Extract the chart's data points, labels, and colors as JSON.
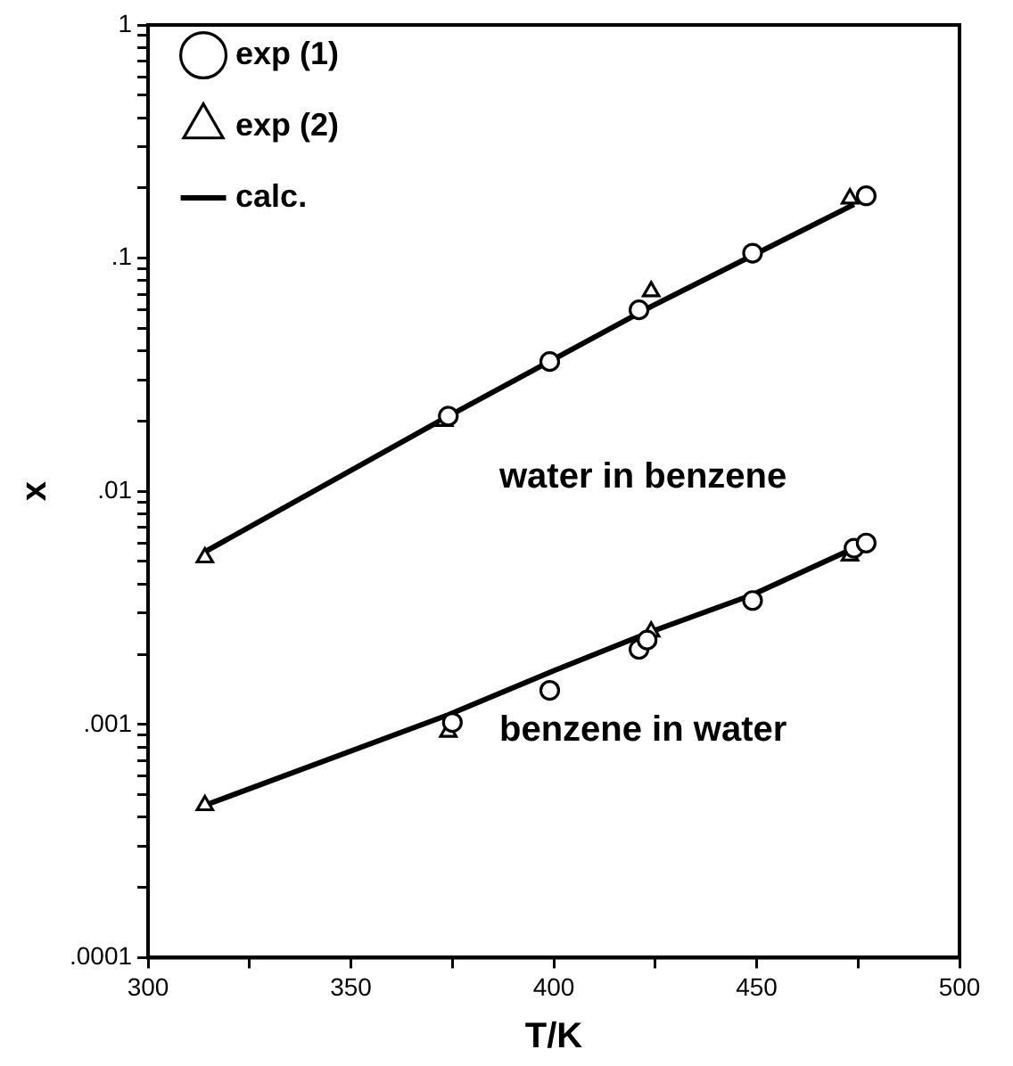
{
  "chart_data": {
    "type": "scatter",
    "xlabel": "T/K",
    "ylabel": "x",
    "xlim": [
      300,
      500
    ],
    "xticks": [
      300,
      {
        "value": 325,
        "label": null
      },
      350,
      {
        "value": 375,
        "label": null
      },
      400,
      {
        "value": 425,
        "label": null
      },
      450,
      {
        "value": 475,
        "label": null
      },
      500
    ],
    "ylim": [
      0.0001,
      1
    ],
    "log": "y",
    "yticks": [
      {
        "value": 0.0001,
        "label": ".0001"
      },
      {
        "value": 0.0002,
        "label": null
      },
      {
        "value": 0.0003,
        "label": null
      },
      {
        "value": 0.0004,
        "label": null
      },
      {
        "value": 0.0005,
        "label": null
      },
      {
        "value": 0.0006,
        "label": null
      },
      {
        "value": 0.0007,
        "label": null
      },
      {
        "value": 0.0008,
        "label": null
      },
      {
        "value": 0.0009,
        "label": null
      },
      {
        "value": 0.001,
        "label": ".001"
      },
      {
        "value": 0.002,
        "label": null
      },
      {
        "value": 0.003,
        "label": null
      },
      {
        "value": 0.004,
        "label": null
      },
      {
        "value": 0.005,
        "label": null
      },
      {
        "value": 0.006,
        "label": null
      },
      {
        "value": 0.007,
        "label": null
      },
      {
        "value": 0.008,
        "label": null
      },
      {
        "value": 0.009,
        "label": null
      },
      {
        "value": 0.01,
        "label": ".01"
      },
      {
        "value": 0.02,
        "label": null
      },
      {
        "value": 0.03,
        "label": null
      },
      {
        "value": 0.04,
        "label": null
      },
      {
        "value": 0.05,
        "label": null
      },
      {
        "value": 0.06,
        "label": null
      },
      {
        "value": 0.07,
        "label": null
      },
      {
        "value": 0.08,
        "label": null
      },
      {
        "value": 0.09,
        "label": null
      },
      {
        "value": 0.1,
        "label": ".1"
      },
      {
        "value": 0.2,
        "label": null
      },
      {
        "value": 0.3,
        "label": null
      },
      {
        "value": 0.4,
        "label": null
      },
      {
        "value": 0.5,
        "label": null
      },
      {
        "value": 0.6,
        "label": null
      },
      {
        "value": 0.7,
        "label": null
      },
      {
        "value": 0.8,
        "label": null
      },
      {
        "value": 0.9,
        "label": null
      },
      {
        "value": 1,
        "label": "1"
      }
    ],
    "grid": false,
    "legend": "top left",
    "series": [
      {
        "name": "exp (1)",
        "marker": "circle",
        "color": "#000000",
        "x": [
          374,
          399,
          421,
          449,
          477,
          375,
          399,
          421,
          423,
          449,
          474,
          477
        ],
        "values": [
          0.021,
          0.036,
          0.06,
          0.105,
          0.185,
          0.00102,
          0.0014,
          0.0021,
          0.0023,
          0.0034,
          0.0057,
          0.006
        ]
      },
      {
        "name": "exp (2)",
        "marker": "triangle",
        "color": "#000000",
        "x": [
          314,
          373,
          424,
          473,
          314,
          374,
          424,
          473
        ],
        "values": [
          0.0052,
          0.02,
          0.072,
          0.18,
          0.00045,
          0.00093,
          0.0025,
          0.0053
        ]
      },
      {
        "name": "calc.",
        "type": "line",
        "marker": "none",
        "line_style": "solid",
        "color": "#000000",
        "x": [
          314,
          374,
          424,
          474
        ],
        "values": [
          0.0055,
          0.021,
          0.062,
          0.17
        ]
      },
      {
        "type": "line",
        "marker": "none",
        "line_style": "solid",
        "color": "#000000",
        "x": [
          314,
          374,
          400,
          424,
          449,
          474
        ],
        "values": [
          0.00045,
          0.0011,
          0.0017,
          0.0025,
          0.0036,
          0.0057
        ]
      }
    ],
    "annotations": [
      "water in benzene",
      "benzene in water"
    ]
  }
}
